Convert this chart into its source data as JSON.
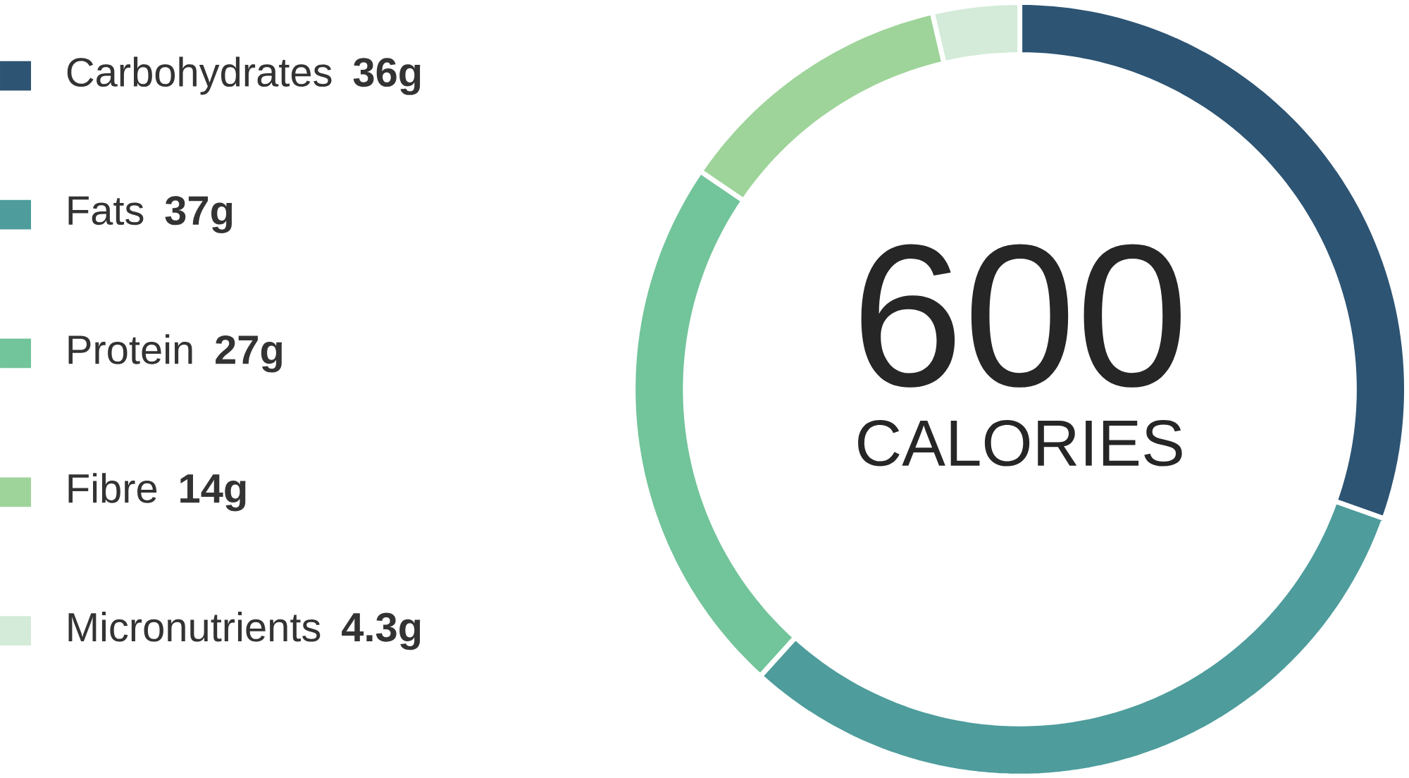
{
  "chart_data": {
    "type": "donut",
    "categories": [
      "Carbohydrates",
      "Fats",
      "Protein",
      "Fibre",
      "Micronutrients"
    ],
    "values": [
      36,
      37,
      27,
      14,
      4.3
    ],
    "value_labels": [
      "36g",
      "37g",
      "27g",
      "14g",
      "4.3g"
    ],
    "colors": [
      "#2d5473",
      "#4e9c9c",
      "#72c49a",
      "#9ed49a",
      "#d3ebd8"
    ],
    "annotations": [
      "600",
      "CALORIES"
    ],
    "legend": "left"
  }
}
